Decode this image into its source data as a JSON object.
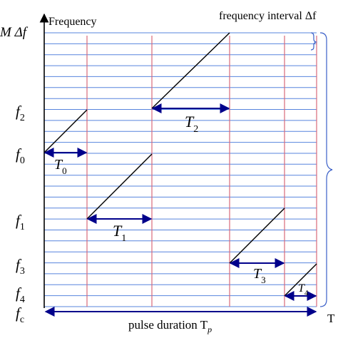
{
  "axes": {
    "y_title": "Frequency",
    "x_end_label": "T"
  },
  "y_labels": {
    "m_delta_f": "M Δf",
    "f2": {
      "base": "f",
      "sub": "2"
    },
    "f0": {
      "base": "f",
      "sub": "0"
    },
    "f1": {
      "base": "f",
      "sub": "1"
    },
    "f3": {
      "base": "f",
      "sub": "3"
    },
    "f4": {
      "base": "f",
      "sub": "4"
    },
    "fc": {
      "base": "f",
      "sub": "c"
    }
  },
  "interval_label": "frequency interval Δf",
  "pulse_label": {
    "text": "pulse duration T",
    "sub": "p"
  },
  "durations": [
    {
      "base": "T",
      "sub": "0"
    },
    {
      "base": "T",
      "sub": "1"
    },
    {
      "base": "T",
      "sub": "2"
    },
    {
      "base": "T",
      "sub": "3"
    },
    {
      "base": "T",
      "sub": "4"
    }
  ],
  "colors": {
    "grid": "#3a6fd8",
    "segment_boundary": "#d86a7a",
    "duration_arrow": "#00008b",
    "bracket": "#3a5fc8"
  }
}
